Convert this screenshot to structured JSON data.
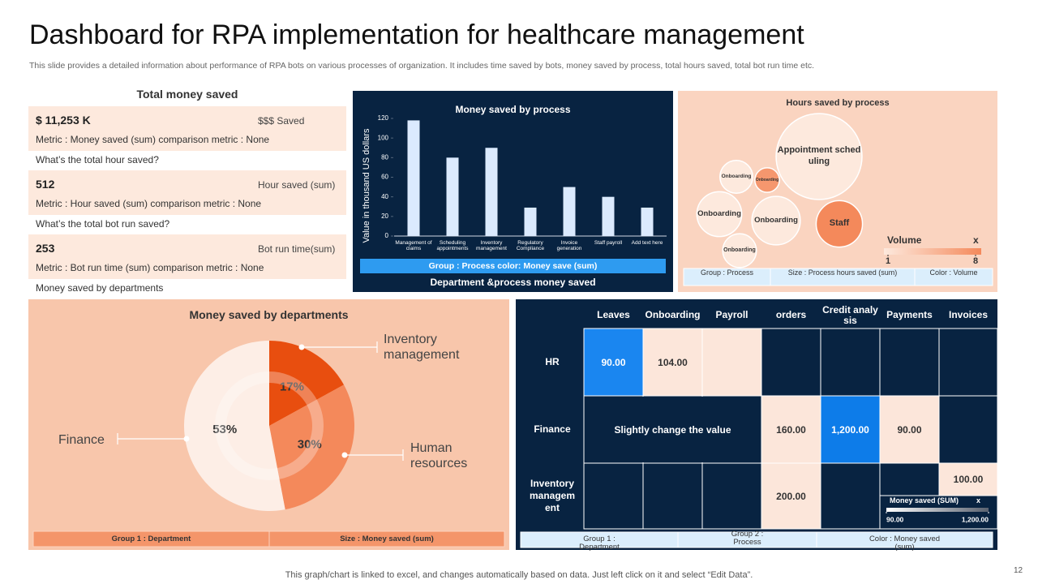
{
  "header": {
    "title": "Dashboard for RPA implementation for healthcare management",
    "subtitle": "This slide provides a detailed information about performance of RPA bots on various processes of organization. It includes time saved by bots, money saved by process, total hours saved, total bot run time etc."
  },
  "kpi_panel": {
    "title": "Total money saved",
    "items": [
      {
        "value": "$ 11,253 K",
        "label": "$$$ Saved",
        "metric": "Metric : Money saved (sum) comparison metric : None",
        "question": "What’s the total hour saved?"
      },
      {
        "value": "512",
        "label": "Hour saved (sum)",
        "metric": "Metric : Hour saved (sum) comparison metric : None",
        "question": "What’s the total bot run saved?"
      },
      {
        "value": "253",
        "label": "Bot run time(sum)",
        "metric": "Metric : Bot run time (sum) comparison metric : None",
        "question": "Money saved  by departments"
      }
    ]
  },
  "chart_data": [
    {
      "type": "bar",
      "title": "Money saved by process",
      "y_label": "Value in thousand US dollars",
      "categories": [
        "Management of claims",
        "Scheduling appointments",
        "Inventory management",
        "Regulatory Compliance",
        "Invoice generation",
        "Staff payroll",
        "Add text here"
      ],
      "values": [
        118,
        80,
        90,
        29,
        50,
        40,
        29
      ],
      "color": "#dbeafe",
      "ylim": [
        0,
        120
      ],
      "yticks": [
        0,
        20,
        40,
        60,
        80,
        100,
        120
      ],
      "legend_text": "Group : Process color: Money save (sum)",
      "caption": "Department &process money saved"
    },
    {
      "type": "bubble",
      "title": "Hours saved by process",
      "labels": [
        "Appointment scheduling",
        "Staff",
        "Onboarding",
        "Onboarding",
        "Onboarding",
        "Onboarding",
        "Onboarding"
      ],
      "sizes": [
        110,
        32,
        30,
        35,
        16,
        9,
        17
      ],
      "volumes": [
        1,
        8,
        1,
        1,
        1,
        7,
        1
      ],
      "color_range": [
        "#fde9dd",
        "#f4895b"
      ],
      "colorlim": [
        1,
        8
      ],
      "colorticks": [
        1,
        8
      ],
      "legend_title": "Volume",
      "legend_close": "x",
      "footer": [
        "Group : Process",
        "Size : Process hours saved (sum)",
        "Color : Volume"
      ]
    },
    {
      "type": "pie",
      "title": "Money saved by departments",
      "categories": [
        "Inventory management",
        "Human resources",
        "Finance"
      ],
      "values": [
        17,
        30,
        53
      ],
      "value_labels": [
        "17%",
        "30%",
        "53%"
      ],
      "colors": [
        "#e84e0f",
        "#f4895b",
        "#fdeee6"
      ],
      "footer": [
        "Group 1 : Department",
        "Size : Money saved (sum)"
      ]
    }
  ],
  "heatmap": {
    "columns": [
      "Leaves",
      "Onboarding",
      "Payroll",
      "orders",
      "Credit analysis",
      "Payments",
      "Invoices"
    ],
    "rows": [
      {
        "label": "HR",
        "cells": [
          "90.00",
          "104.00",
          null,
          null,
          null,
          null,
          null
        ],
        "fills": [
          "#1a86f0",
          "#fce6da",
          "#fce6da",
          "#082341",
          "#082341",
          "#082341",
          "#082341"
        ]
      },
      {
        "label": "Finance",
        "note": "Slightly  change the value",
        "cells": [
          null,
          null,
          null,
          "160.00",
          "1,200.00",
          "90.00",
          null
        ],
        "fills": [
          "#082341",
          "#082341",
          "#082341",
          "#fce6da",
          "#0d7ce9",
          "#fce6da",
          "#082341"
        ]
      },
      {
        "label": "Inventory management",
        "cells": [
          null,
          null,
          null,
          "200.00",
          null,
          null,
          "100.00"
        ],
        "fills": [
          "#082341",
          "#082341",
          "#082341",
          "#fce6da",
          "#082341",
          "#082341",
          "#fce6da"
        ]
      }
    ],
    "legend_title": "Money saved (SUM)",
    "legend_close": "x",
    "legend_ticks": [
      {
        "value": 90,
        "label": "90.00"
      },
      {
        "value": 1200,
        "label": "1,200.00"
      }
    ],
    "footer": [
      "Group 1 : Department",
      "Group 2 : Process",
      "Color : Money saved (sum)"
    ]
  },
  "footer": {
    "note": "This graph/chart is linked to excel, and changes automatically based on data. Just left click on it and select “Edit Data”.",
    "page": "12"
  }
}
